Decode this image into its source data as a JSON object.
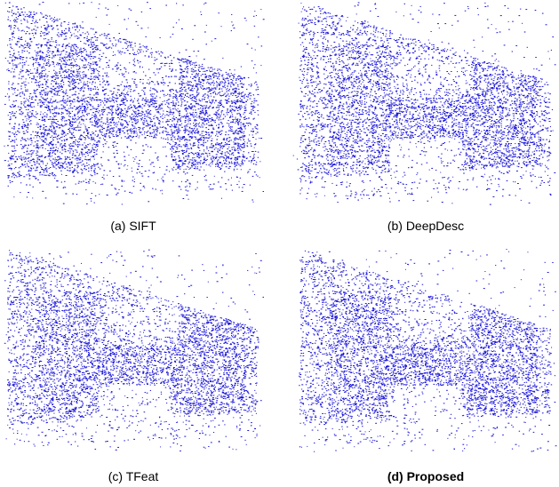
{
  "figure": {
    "point_color": "#1a14d8",
    "background_color": "#ffffff",
    "panels": [
      {
        "id": "a",
        "caption": "(a) SIFT",
        "bold": false
      },
      {
        "id": "b",
        "caption": "(b) DeepDesc",
        "bold": false
      },
      {
        "id": "c",
        "caption": "(c) TFeat",
        "bold": false
      },
      {
        "id": "d",
        "caption": "(d) Proposed",
        "bold": true
      }
    ]
  }
}
